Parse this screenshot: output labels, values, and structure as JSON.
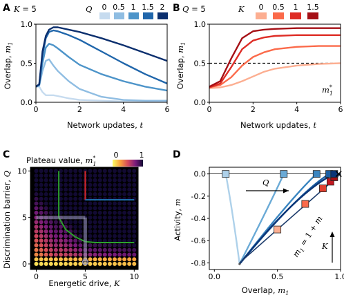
{
  "chart_data": [
    {
      "panel": "A",
      "type": "line",
      "annotation": "K = 5",
      "legend_title": "Q",
      "xlabel": "Network updates, t",
      "ylabel": "Overlap, m1",
      "xlim": [
        0,
        6
      ],
      "ylim": [
        0,
        1
      ],
      "xticks": [
        "0",
        "2",
        "4",
        "6"
      ],
      "yticks": [
        "0.0",
        "0.5",
        "1.0"
      ],
      "colors": [
        "#c6dbef",
        "#8fbde2",
        "#4d94c9",
        "#2066ab",
        "#0b2f6e"
      ],
      "series": [
        {
          "name": "0",
          "x": [
            0,
            0.15,
            0.3,
            0.45,
            0.6,
            0.8,
            1,
            1.5,
            2,
            3,
            4,
            5,
            6
          ],
          "y": [
            0.2,
            0.2,
            0.13,
            0.09,
            0.09,
            0.09,
            0.08,
            0.05,
            0.03,
            0.02,
            0.01,
            0.01,
            0.01
          ]
        },
        {
          "name": "0.5",
          "x": [
            0,
            0.15,
            0.3,
            0.45,
            0.6,
            0.8,
            1,
            1.5,
            2,
            3,
            4,
            5,
            6
          ],
          "y": [
            0.2,
            0.21,
            0.4,
            0.53,
            0.55,
            0.47,
            0.4,
            0.27,
            0.17,
            0.07,
            0.03,
            0.02,
            0.02
          ]
        },
        {
          "name": "1",
          "x": [
            0,
            0.15,
            0.3,
            0.45,
            0.6,
            0.8,
            1,
            1.5,
            2,
            3,
            4,
            5,
            6
          ],
          "y": [
            0.2,
            0.22,
            0.5,
            0.7,
            0.75,
            0.73,
            0.69,
            0.58,
            0.48,
            0.36,
            0.27,
            0.2,
            0.15
          ]
        },
        {
          "name": "1.5",
          "x": [
            0,
            0.15,
            0.3,
            0.45,
            0.6,
            0.8,
            1,
            1.5,
            2,
            3,
            4,
            5,
            6
          ],
          "y": [
            0.2,
            0.23,
            0.6,
            0.82,
            0.9,
            0.92,
            0.91,
            0.86,
            0.8,
            0.65,
            0.5,
            0.36,
            0.24
          ]
        },
        {
          "name": "2",
          "x": [
            0,
            0.15,
            0.3,
            0.45,
            0.6,
            0.8,
            1,
            1.5,
            2,
            3,
            4,
            5,
            6
          ],
          "y": [
            0.2,
            0.23,
            0.65,
            0.85,
            0.93,
            0.96,
            0.96,
            0.93,
            0.9,
            0.82,
            0.73,
            0.63,
            0.53
          ]
        }
      ]
    },
    {
      "panel": "B",
      "type": "line",
      "annotation": "Q = 5",
      "legend_title": "K",
      "xlabel": "Network updates, t",
      "ylabel": "Overlap, m1",
      "xlim": [
        0,
        6
      ],
      "ylim": [
        0,
        1
      ],
      "xticks": [
        "0",
        "2",
        "4",
        "6"
      ],
      "yticks": [
        "0.0",
        "0.5",
        "1.0"
      ],
      "colors": [
        "#fcae91",
        "#fb6a4a",
        "#de2d26",
        "#a50f15"
      ],
      "reference_line": {
        "y": 0.5,
        "label": "m1*"
      },
      "series": [
        {
          "name": "0",
          "x": [
            0,
            0.5,
            1,
            1.5,
            2,
            2.5,
            3,
            4,
            5,
            6
          ],
          "y": [
            0.18,
            0.19,
            0.22,
            0.27,
            0.33,
            0.39,
            0.43,
            0.47,
            0.49,
            0.5
          ]
        },
        {
          "name": "0.5",
          "x": [
            0,
            0.5,
            1,
            1.5,
            2,
            2.5,
            3,
            4,
            5,
            6
          ],
          "y": [
            0.19,
            0.22,
            0.32,
            0.47,
            0.58,
            0.64,
            0.68,
            0.71,
            0.72,
            0.72
          ]
        },
        {
          "name": "1",
          "x": [
            0,
            0.5,
            1,
            1.5,
            2,
            2.5,
            3,
            4,
            5,
            6
          ],
          "y": [
            0.19,
            0.24,
            0.45,
            0.68,
            0.79,
            0.83,
            0.85,
            0.86,
            0.86,
            0.86
          ]
        },
        {
          "name": "1.5",
          "x": [
            0,
            0.5,
            1,
            1.5,
            2,
            2.5,
            3,
            4,
            5,
            6
          ],
          "y": [
            0.2,
            0.27,
            0.56,
            0.82,
            0.91,
            0.93,
            0.94,
            0.95,
            0.95,
            0.95
          ]
        }
      ]
    },
    {
      "panel": "C",
      "type": "heatmap",
      "colorbar_title": "Plateau value, m1*",
      "colorbar_ticks": [
        "0",
        "1"
      ],
      "xlabel": "Energetic drive, K",
      "ylabel": "Discrimination barrier, Q",
      "xlim": [
        0,
        10
      ],
      "ylim": [
        0,
        10
      ],
      "xticks": [
        "0",
        "5",
        "10"
      ],
      "yticks": [
        "0",
        "5",
        "10"
      ],
      "phase_boundaries": [
        {
          "color": "#2ca02c",
          "x": [
            2.3,
            2.3,
            3.0,
            4.0,
            5.0,
            6.0,
            7.0,
            8.0,
            9.0,
            10.0
          ],
          "y": [
            10,
            5.0,
            3.7,
            2.9,
            2.4,
            2.3,
            2.3,
            2.3,
            2.3,
            2.3
          ]
        },
        {
          "color": "#d62728",
          "x": [
            5,
            5
          ],
          "y": [
            10,
            6.9
          ]
        },
        {
          "color": "#1f77b4",
          "x": [
            5,
            10
          ],
          "y": [
            6.9,
            6.9
          ]
        },
        {
          "color": "#9a9ab8",
          "x": [
            0,
            5
          ],
          "y": [
            5,
            5
          ]
        },
        {
          "color": "#9a9ab8",
          "x": [
            5,
            5
          ],
          "y": [
            0,
            5
          ]
        }
      ],
      "marked_point": {
        "x": 5,
        "y": 0.2
      }
    },
    {
      "panel": "D",
      "type": "scatter",
      "annotation_arrow_top": "Q",
      "annotation_arrow_right": "K",
      "diagonal_label": "m1 = 1 + m",
      "xlabel": "Overlap, m1",
      "ylabel": "Activity, m",
      "xlim": [
        0,
        1
      ],
      "ylim": [
        -0.8,
        0
      ],
      "xticks": [
        "0.0",
        "0.5",
        "1.0"
      ],
      "yticks": [
        "0.0",
        "-0.2",
        "-0.4",
        "-0.6",
        "-0.8"
      ],
      "diagonal": {
        "x": [
          0.2,
          1.0
        ],
        "y": [
          -0.8,
          0
        ]
      },
      "start_point": {
        "x": 0.2,
        "y": -0.81
      },
      "blue_colors": [
        "#aed1ea",
        "#6aaad6",
        "#3a85c0",
        "#1b5ea3",
        "#0b3577"
      ],
      "blue_endpoints": {
        "x": [
          0.09,
          0.55,
          0.81,
          0.91,
          0.95
        ],
        "y": [
          0,
          0,
          0,
          0,
          0
        ]
      },
      "red_colors": [
        "#fcae91",
        "#fb6a4a",
        "#e0402f",
        "#c41820",
        "#a50f15"
      ],
      "red_points": {
        "x": [
          0.5,
          0.72,
          0.86,
          0.92,
          0.95
        ],
        "y": [
          -0.5,
          -0.27,
          -0.13,
          -0.07,
          -0.03
        ]
      },
      "end_marker": "x"
    }
  ]
}
